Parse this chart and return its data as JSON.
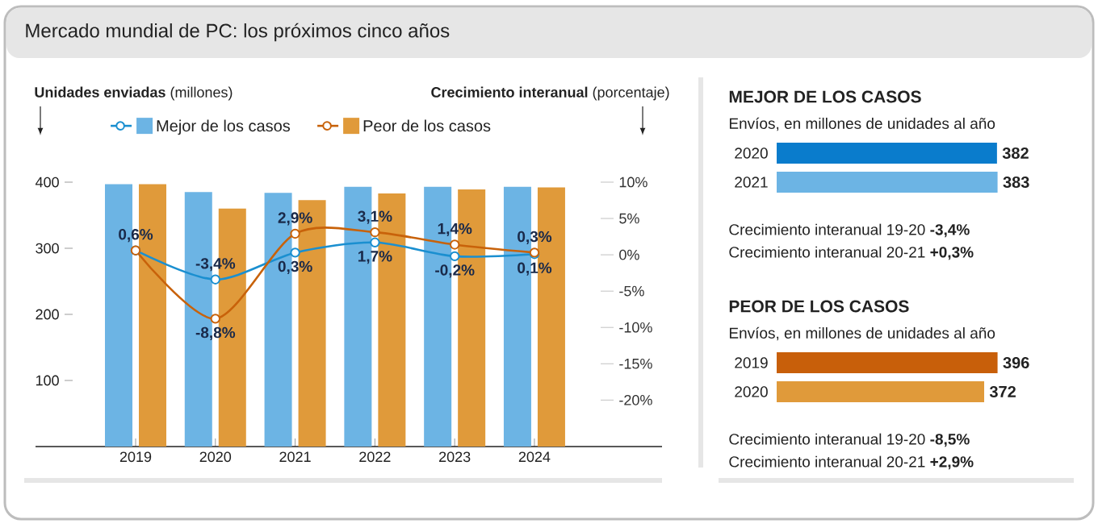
{
  "chart_data": [
    {
      "type": "bar",
      "title": "Mercado mundial de PC: los próximos cinco años",
      "ylabel": "**Unidades enviadas** (millones)",
      "y2label": "**Crecimiento interanual** (porcentaje)",
      "categories": [
        "2019",
        "2020",
        "2021",
        "2022",
        "2023",
        "2024"
      ],
      "ylim": [
        0,
        400
      ],
      "yticks": [
        100,
        200,
        300,
        400
      ],
      "y2lim": [
        -26.4,
        10
      ],
      "y2ticks": [
        {
          "value": 10,
          "label": "10%"
        },
        {
          "value": 5,
          "label": "5%"
        },
        {
          "value": 0,
          "label": "0%"
        },
        {
          "value": -5,
          "label": "-5%"
        },
        {
          "value": -10,
          "label": "-10%"
        },
        {
          "value": -15,
          "label": "-15%"
        },
        {
          "value": -20,
          "label": "-20%"
        }
      ],
      "legend": "top",
      "marker": "circle",
      "series": [
        {
          "name": "Mejor de los casos",
          "type": "bar",
          "color": "#6cb4e4",
          "values": [
            397,
            385,
            384,
            393,
            393,
            393
          ]
        },
        {
          "name": "Peor de los casos",
          "type": "bar",
          "color": "#e09a3a",
          "values": [
            397,
            360,
            373,
            383,
            389,
            392
          ]
        },
        {
          "type": "line",
          "axis": "y2",
          "color": "#1a8fd0",
          "values": [
            0.6,
            -3.4,
            0.3,
            1.7,
            -0.2,
            0.1
          ],
          "value_labels": [
            "0,6%",
            "-3,4%",
            "0,3%",
            "1,7%",
            "-0,2%",
            "0,1%"
          ]
        },
        {
          "type": "line",
          "axis": "y2",
          "color": "#c8620a",
          "values": [
            0.6,
            -8.8,
            2.9,
            3.1,
            1.4,
            0.3
          ],
          "value_labels": [
            null,
            "-8,8%",
            "2,9%",
            "3,1%",
            "1,4%",
            "0,3%"
          ]
        }
      ]
    },
    {
      "type": "bar",
      "orientation": "horizontal",
      "title": "MEJOR DE LOS CASOS",
      "subtitle": "Envíos, en millones de unidades al año",
      "categories": [
        "2020",
        "2021"
      ],
      "values": [
        382,
        383
      ],
      "colors": [
        "#0a7ccc",
        "#6cb4e4"
      ],
      "data_labels": true,
      "annotations": [
        "Crecimiento interanual 19-20 **-3,4%**",
        "Crecimiento interanual 20-21 **+0,3%**"
      ]
    },
    {
      "type": "bar",
      "orientation": "horizontal",
      "title": "PEOR DE LOS CASOS",
      "subtitle": "Envíos, en millones de unidades al año",
      "categories": [
        "2019",
        "2020"
      ],
      "values": [
        396,
        372
      ],
      "colors": [
        "#c85f0a",
        "#e09a3a"
      ],
      "data_labels": true,
      "annotations": [
        "Crecimiento interanual 19-20 **-8,5%**",
        "Crecimiento interanual 20-21 **+2,9%**"
      ]
    }
  ]
}
